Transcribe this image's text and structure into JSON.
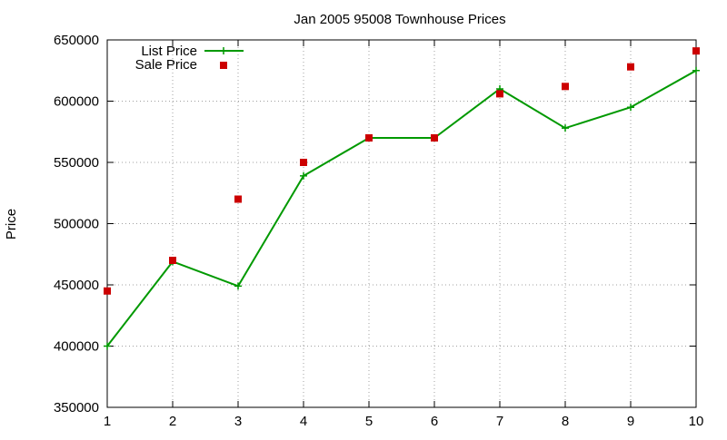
{
  "chart_data": {
    "type": "line",
    "title": "Jan 2005 95008 Townhouse Prices",
    "xlabel": "",
    "ylabel": "Price",
    "xlim": [
      1,
      10
    ],
    "ylim": [
      350000,
      650000
    ],
    "x_ticks": [
      1,
      2,
      3,
      4,
      5,
      6,
      7,
      8,
      9,
      10
    ],
    "y_ticks": [
      350000,
      400000,
      450000,
      500000,
      550000,
      600000,
      650000
    ],
    "grid": true,
    "legend_position": "top-left",
    "series": [
      {
        "name": "List Price",
        "style": "line-with-plus-markers",
        "color": "#009900",
        "x": [
          1,
          2,
          3,
          4,
          5,
          6,
          7,
          8,
          9,
          10
        ],
        "y": [
          400000,
          469000,
          449000,
          539000,
          570000,
          570000,
          610000,
          578000,
          595000,
          625000
        ]
      },
      {
        "name": "Sale Price",
        "style": "square-markers",
        "color": "#cc0000",
        "x": [
          1,
          2,
          3,
          4,
          5,
          6,
          7,
          8,
          9,
          10
        ],
        "y": [
          445000,
          470000,
          520000,
          550000,
          570000,
          570000,
          606000,
          612000,
          628000,
          641000
        ]
      }
    ]
  }
}
